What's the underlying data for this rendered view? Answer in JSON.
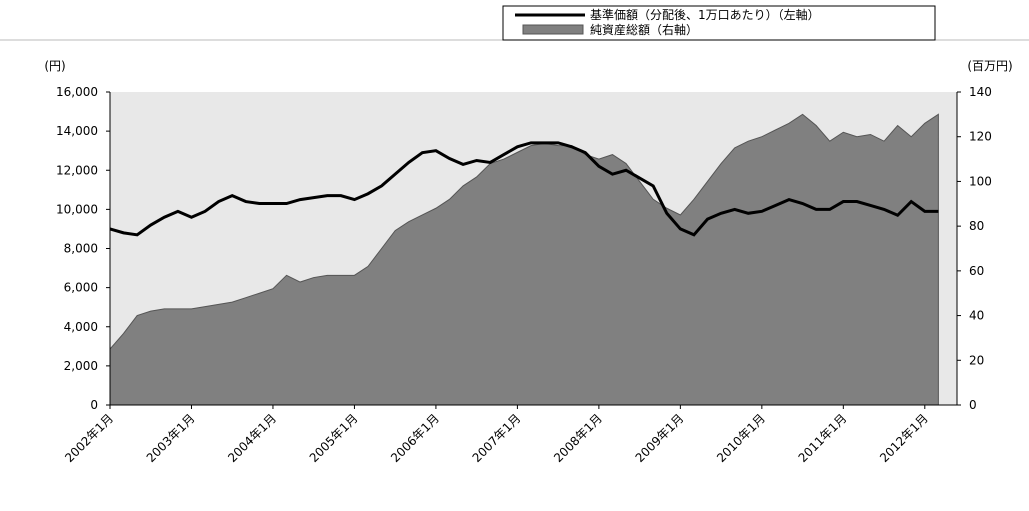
{
  "chart_data": {
    "type": "line-area",
    "legend": [
      "基準価額（分配後、1万口あたり）（左軸）",
      "純資産総額（右軸）"
    ],
    "ylabel": "(円)",
    "y2label": "(百万円)",
    "categories": [
      "2002年1月",
      null,
      null,
      null,
      null,
      null,
      "2003年1月",
      null,
      null,
      null,
      null,
      null,
      "2004年1月",
      null,
      null,
      null,
      null,
      null,
      "2005年1月",
      null,
      null,
      null,
      null,
      null,
      "2006年1月",
      null,
      null,
      null,
      null,
      null,
      "2007年1月",
      null,
      null,
      null,
      null,
      null,
      "2008年1月",
      null,
      null,
      null,
      null,
      null,
      "2009年1月",
      null,
      null,
      null,
      null,
      null,
      "2010年1月",
      null,
      null,
      null,
      null,
      null,
      "2011年1月",
      null,
      null,
      null,
      null,
      null,
      "2012年1月",
      null
    ],
    "series": [
      {
        "name": "基準価額（分配後、1万口あたり）（左軸）",
        "color": "#000000",
        "kind": "line",
        "values": [
          9000,
          8800,
          8700,
          9200,
          9600,
          9900,
          9600,
          9900,
          10400,
          10700,
          10400,
          10300,
          10300,
          10300,
          10500,
          10600,
          10700,
          10700,
          10500,
          10800,
          11200,
          11800,
          12400,
          12900,
          13000,
          12600,
          12300,
          12500,
          12400,
          12800,
          13200,
          13400,
          13400,
          13400,
          13200,
          12900,
          12200,
          11800,
          12000,
          11600,
          11200,
          9800,
          9000,
          8700,
          9500,
          9800,
          10000,
          9800,
          9900,
          10200,
          10500,
          10300,
          10000,
          10000,
          10400,
          10400,
          10200,
          10000,
          9700,
          10400,
          9900,
          9900
        ]
      },
      {
        "name": "純資産総額（右軸）",
        "color": "#808080",
        "kind": "area",
        "axis": "y2",
        "values": [
          25,
          32,
          40,
          42,
          43,
          43,
          43,
          44,
          45,
          46,
          48,
          50,
          52,
          58,
          55,
          57,
          58,
          58,
          58,
          62,
          70,
          78,
          82,
          85,
          88,
          92,
          98,
          102,
          108,
          110,
          113,
          116,
          117,
          116,
          116,
          112,
          110,
          112,
          108,
          100,
          92,
          88,
          85,
          92,
          100,
          108,
          115,
          118,
          120,
          123,
          126,
          130,
          125,
          118,
          122,
          120,
          121,
          118,
          125,
          120,
          126,
          130
        ]
      }
    ],
    "ylim": [
      0,
      16000
    ],
    "yticks": [
      0,
      {
        "value": 2000,
        "label": "2,000"
      },
      {
        "value": 4000,
        "label": "4,000"
      },
      {
        "value": 6000,
        "label": "6,000"
      },
      {
        "value": 8000,
        "label": "8,000"
      },
      {
        "value": 10000,
        "label": "10,000"
      },
      {
        "value": 12000,
        "label": "12,000"
      },
      {
        "value": 14000,
        "label": "14,000"
      },
      {
        "value": 16000,
        "label": "16,000"
      }
    ],
    "y2lim": [
      0,
      140
    ],
    "y2ticks": [
      0,
      20,
      40,
      60,
      80,
      100,
      120,
      140
    ],
    "plot_background": "#e8e8e8"
  }
}
